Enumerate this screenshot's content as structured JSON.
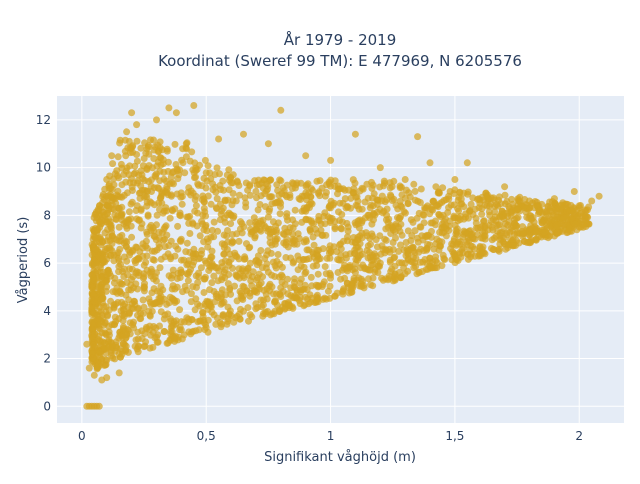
{
  "chart_data": {
    "type": "scatter",
    "title_line1": "År 1979 - 2019",
    "title_line2": "Koordinat (Sweref 99 TM): E 477969, N 6205576",
    "xlabel": "Signifikant våghöjd (m)",
    "ylabel": "Vågperiod (s)",
    "xlim": [
      -0.1,
      2.18
    ],
    "ylim": [
      -0.7,
      13.0
    ],
    "x_ticks": [
      0,
      0.5,
      1,
      1.5,
      2
    ],
    "x_tick_labels": [
      "0",
      "0,5",
      "1",
      "1,5",
      "2"
    ],
    "y_ticks": [
      0,
      2,
      4,
      6,
      8,
      10,
      12
    ],
    "y_tick_labels": [
      "0",
      "2",
      "4",
      "6",
      "8",
      "10",
      "12"
    ],
    "grid": true,
    "marker_color": "#D4A421",
    "background_color": "#E5ECF6",
    "points": [
      [
        0.02,
        0
      ],
      [
        0.03,
        0
      ],
      [
        0.04,
        0
      ],
      [
        0.05,
        0
      ],
      [
        0.06,
        0
      ],
      [
        0.07,
        0
      ],
      [
        0.02,
        2.6
      ],
      [
        0.03,
        1.6
      ],
      [
        0.05,
        1.3
      ],
      [
        0.08,
        1.1
      ],
      [
        0.1,
        1.2
      ],
      [
        0.15,
        1.4
      ],
      [
        0.05,
        3.5
      ],
      [
        0.08,
        4.5
      ],
      [
        0.06,
        6.0
      ],
      [
        0.07,
        8.0
      ],
      [
        0.1,
        9.5
      ],
      [
        0.12,
        10.5
      ],
      [
        0.15,
        2.2
      ],
      [
        0.18,
        3.0
      ],
      [
        0.15,
        7.5
      ],
      [
        0.18,
        11.5
      ],
      [
        0.2,
        12.3
      ],
      [
        0.22,
        11.8
      ],
      [
        0.25,
        2.5
      ],
      [
        0.25,
        5.0
      ],
      [
        0.28,
        9.0
      ],
      [
        0.3,
        12.0
      ],
      [
        0.35,
        12.5
      ],
      [
        0.38,
        12.3
      ],
      [
        0.4,
        3.2
      ],
      [
        0.4,
        7.0
      ],
      [
        0.42,
        11.0
      ],
      [
        0.45,
        12.6
      ],
      [
        0.5,
        3.3
      ],
      [
        0.5,
        6.0
      ],
      [
        0.55,
        11.2
      ],
      [
        0.6,
        3.8
      ],
      [
        0.6,
        8.0
      ],
      [
        0.65,
        11.4
      ],
      [
        0.7,
        4.3
      ],
      [
        0.7,
        9.0
      ],
      [
        0.75,
        11.0
      ],
      [
        0.8,
        4.6
      ],
      [
        0.8,
        12.4
      ],
      [
        0.85,
        7.0
      ],
      [
        0.9,
        10.5
      ],
      [
        0.95,
        5.0
      ],
      [
        1.0,
        5.5
      ],
      [
        1.0,
        10.3
      ],
      [
        1.05,
        8.5
      ],
      [
        1.1,
        5.6
      ],
      [
        1.1,
        11.4
      ],
      [
        1.15,
        8.0
      ],
      [
        1.2,
        6.0
      ],
      [
        1.2,
        10.0
      ],
      [
        1.25,
        7.5
      ],
      [
        1.3,
        6.0
      ],
      [
        1.3,
        9.5
      ],
      [
        1.35,
        11.3
      ],
      [
        1.4,
        6.2
      ],
      [
        1.4,
        10.2
      ],
      [
        1.45,
        7.5
      ],
      [
        1.5,
        6.3
      ],
      [
        1.5,
        9.5
      ],
      [
        1.55,
        10.2
      ],
      [
        1.6,
        6.5
      ],
      [
        1.6,
        8.5
      ],
      [
        1.65,
        7.5
      ],
      [
        1.7,
        6.8
      ],
      [
        1.7,
        9.2
      ],
      [
        1.75,
        7.2
      ],
      [
        1.8,
        7.4
      ],
      [
        1.8,
        8.6
      ],
      [
        1.85,
        7.7
      ],
      [
        1.9,
        7.8
      ],
      [
        1.9,
        8.7
      ],
      [
        1.95,
        8.2
      ],
      [
        2.0,
        8.4
      ],
      [
        2.05,
        8.6
      ],
      [
        2.08,
        8.8
      ],
      [
        1.98,
        9.0
      ]
    ]
  }
}
